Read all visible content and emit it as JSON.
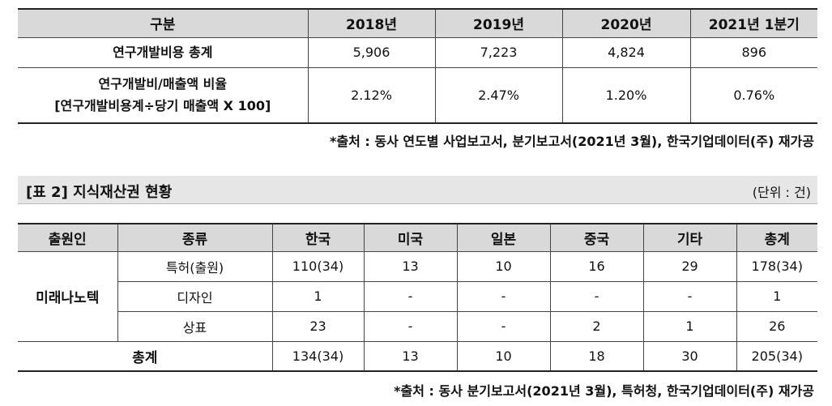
{
  "table1": {
    "headers": [
      "구분",
      "2018년",
      "2019년",
      "2020년",
      "2021년 1분기"
    ],
    "rows": [
      {
        "label_lines": [
          "연구개발비용 총계"
        ],
        "values": [
          "5,906",
          "7,223",
          "4,824",
          "896"
        ]
      },
      {
        "label_lines": [
          "연구개발비/매출액 비율",
          "[연구개발비용계÷당기 매출액 X 100]"
        ],
        "values": [
          "2.12%",
          "2.47%",
          "1.20%",
          "0.76%"
        ]
      }
    ],
    "source": "*출처 : 동사 연도별 사업보고서, 분기보고서(2021년 3월), 한국기업데이터(주) 재가공"
  },
  "table2": {
    "title": "[표 2] 지식재산권 현황",
    "unit": "(단위 : 건)",
    "headers": [
      "출원인",
      "종류",
      "한국",
      "미국",
      "일본",
      "중국",
      "기타",
      "총계"
    ],
    "applicant": "미래나노텍",
    "rows": [
      {
        "type": "특허(출원)",
        "values": [
          "110(34)",
          "13",
          "10",
          "16",
          "29",
          "178(34)"
        ]
      },
      {
        "type": "디자인",
        "values": [
          "1",
          "-",
          "-",
          "-",
          "-",
          "1"
        ]
      },
      {
        "type": "상표",
        "values": [
          "23",
          "-",
          "-",
          "2",
          "1",
          "26"
        ]
      }
    ],
    "total": {
      "label": "총계",
      "values": [
        "134(34)",
        "13",
        "10",
        "18",
        "30",
        "205(34)"
      ]
    },
    "source": "*출처 : 동사 분기보고서(2021년 3월), 특허청, 한국기업데이터(주) 재가공"
  }
}
